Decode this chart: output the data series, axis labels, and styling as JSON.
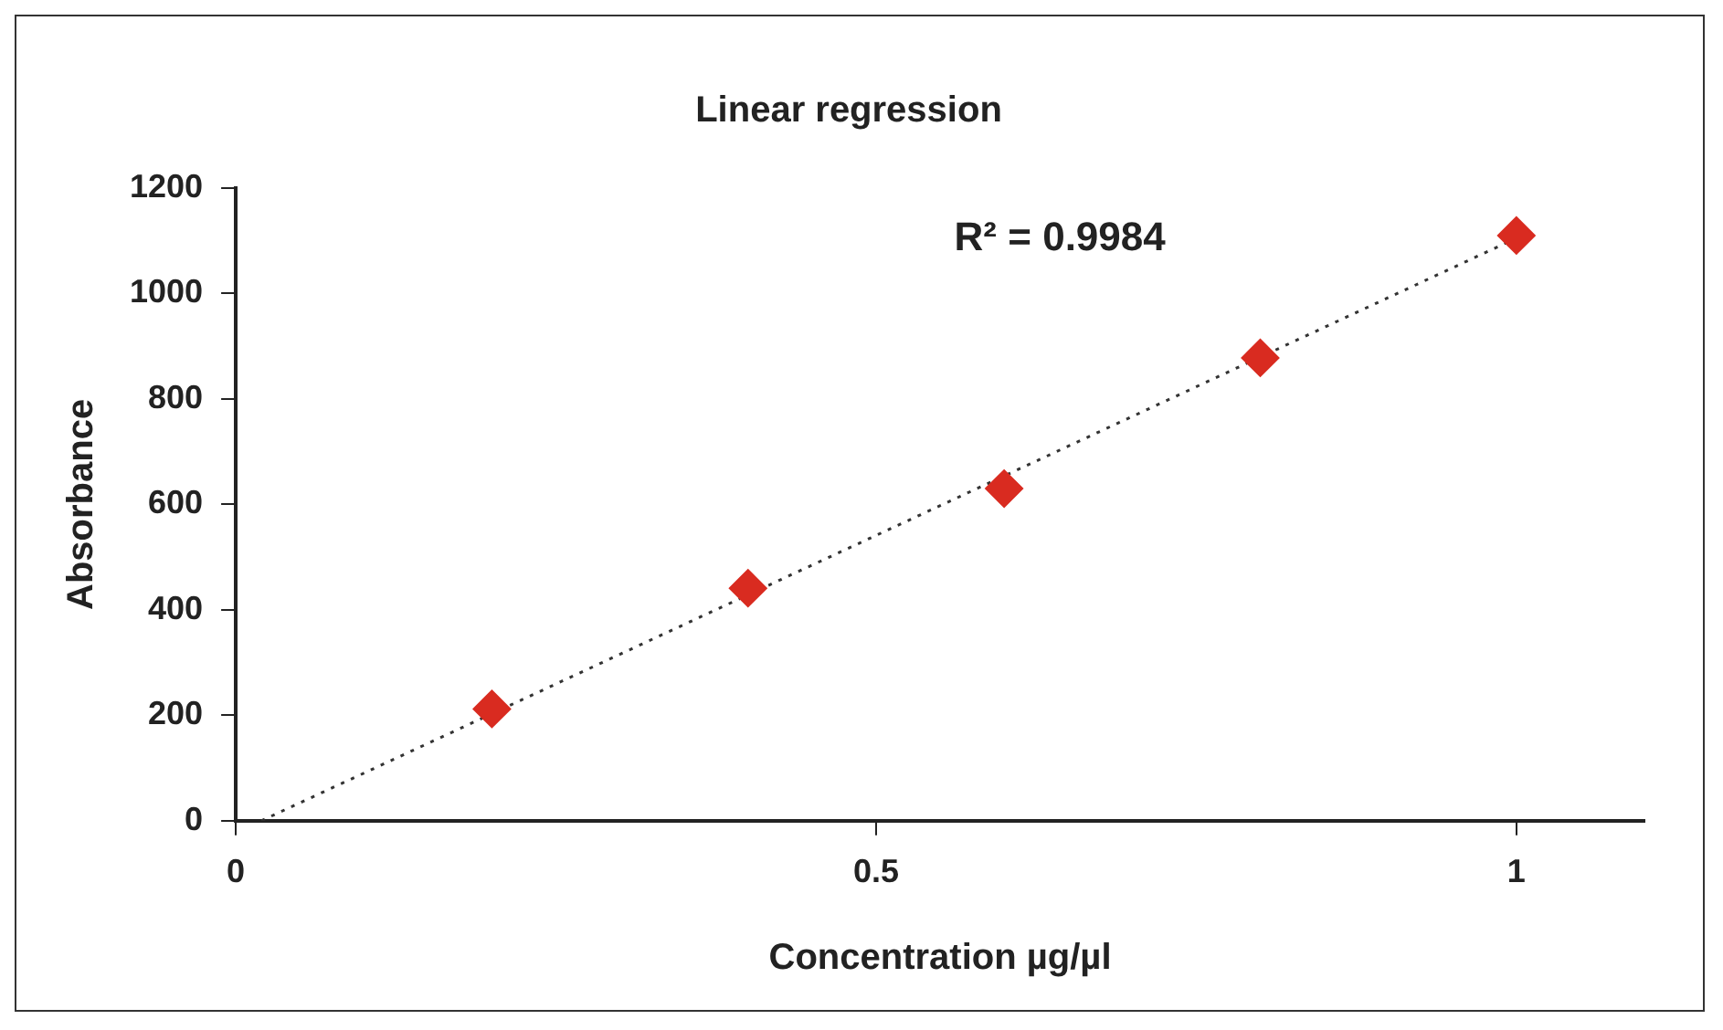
{
  "chart_data": {
    "type": "scatter",
    "title": "Linear regression",
    "xlabel": "Concentration µg/µl",
    "ylabel": "Absorbance",
    "x": [
      0.2,
      0.4,
      0.6,
      0.8,
      1.0
    ],
    "series": [
      {
        "type": "scatter",
        "color": "#d92b20",
        "marker": "diamond",
        "values": [
          212,
          441,
          630,
          878,
          1110
        ]
      },
      {
        "type": "line",
        "color": "#333333",
        "line_style": "dotted",
        "marker": "none",
        "x": [
          0.02,
          1.0
        ],
        "values": [
          0,
          1105
        ]
      }
    ],
    "xlim": [
      0,
      1.1
    ],
    "xticks": [
      0,
      0.5,
      1
    ],
    "ylim": [
      0,
      1200
    ],
    "yticks": [
      0,
      200,
      400,
      600,
      800,
      1000,
      1200
    ],
    "annotations": [
      "R² = 0.9984"
    ],
    "grid": false,
    "legend": false
  }
}
